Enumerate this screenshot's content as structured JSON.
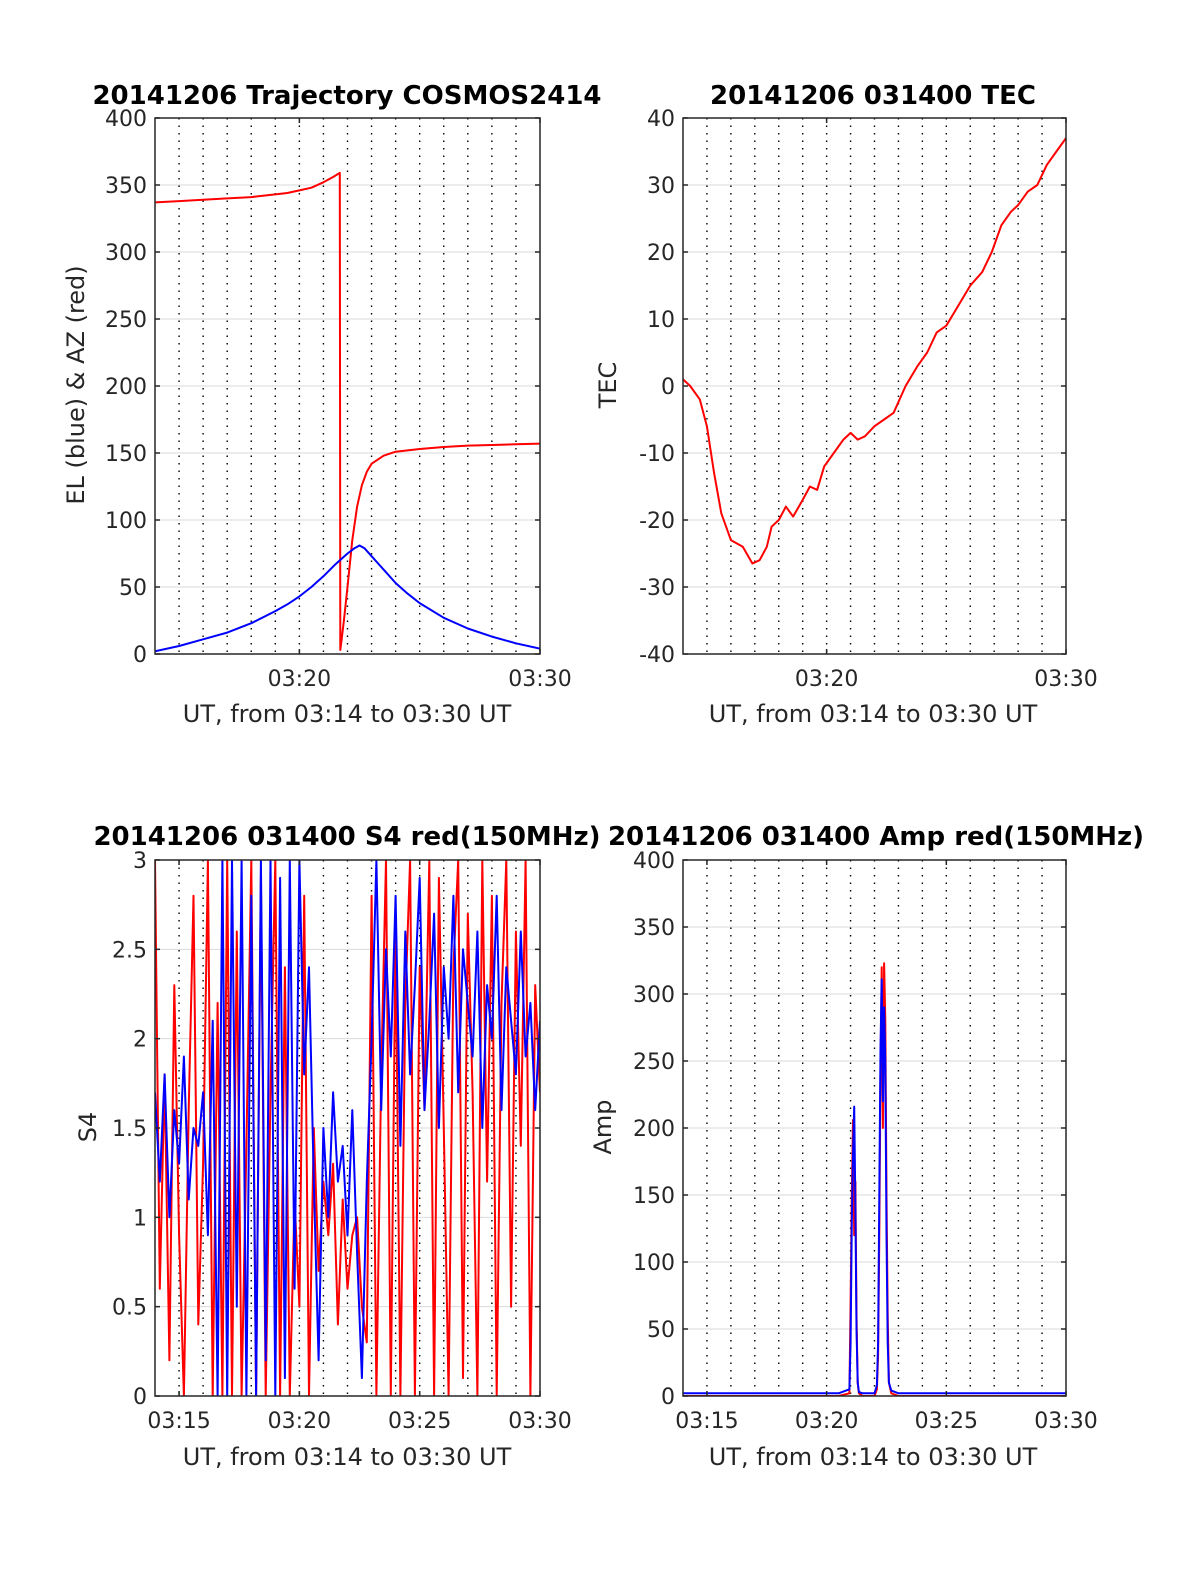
{
  "colors": {
    "red": "#ff0000",
    "blue": "#0000ff",
    "axis": "#262626",
    "grid": "#d9d9d9",
    "dot": "#000000"
  },
  "chart_data": [
    {
      "type": "line",
      "title": "20141206 Trajectory COSMOS2414",
      "xlabel": "UT, from 03:14 to 03:30 UT",
      "ylabel": "EL (blue) & AZ (red)",
      "xlim": [
        14,
        30
      ],
      "ylim": [
        0,
        400
      ],
      "xticks": [
        {
          "v": 20,
          "label": "03:20"
        },
        {
          "v": 30,
          "label": "03:30"
        }
      ],
      "yticks": [
        {
          "v": 0,
          "label": "0"
        },
        {
          "v": 50,
          "label": "50"
        },
        {
          "v": 100,
          "label": "100"
        },
        {
          "v": 150,
          "label": "150"
        },
        {
          "v": 200,
          "label": "200"
        },
        {
          "v": 250,
          "label": "250"
        },
        {
          "v": 300,
          "label": "300"
        },
        {
          "v": 350,
          "label": "350"
        },
        {
          "v": 400,
          "label": "400"
        }
      ],
      "grid": true,
      "series": [
        {
          "color": "red",
          "x": [
            14,
            15,
            16,
            17,
            18,
            19,
            19.5,
            20,
            20.5,
            21,
            21.4,
            21.68,
            21.7,
            21.75,
            21.85,
            22.0,
            22.2,
            22.4,
            22.6,
            22.8,
            23.0,
            23.5,
            24,
            25,
            26,
            27,
            28,
            29,
            30
          ],
          "y": [
            337,
            338,
            339,
            340,
            341,
            343,
            344,
            346,
            348,
            352,
            356,
            359,
            3,
            10,
            25,
            50,
            85,
            110,
            126,
            136,
            142,
            148,
            151,
            153,
            154.5,
            155.5,
            156,
            156.5,
            157
          ]
        },
        {
          "color": "blue",
          "x": [
            14,
            15,
            16,
            17,
            18,
            19,
            19.5,
            20,
            20.5,
            21,
            21.5,
            22,
            22.3,
            22.5,
            22.7,
            23,
            23.5,
            24,
            24.5,
            25,
            26,
            27,
            28,
            29,
            30
          ],
          "y": [
            2,
            6,
            11,
            16,
            23,
            32,
            37,
            43,
            50,
            58,
            67,
            75,
            79,
            81,
            79,
            73,
            63,
            53,
            45,
            38,
            27,
            19,
            13,
            8,
            4
          ]
        }
      ]
    },
    {
      "type": "line",
      "title": "20141206 031400 TEC",
      "xlabel": "UT, from 03:14 to 03:30 UT",
      "ylabel": "TEC",
      "xlim": [
        14,
        30
      ],
      "ylim": [
        -40,
        40
      ],
      "xticks": [
        {
          "v": 20,
          "label": "03:20"
        },
        {
          "v": 30,
          "label": "03:30"
        }
      ],
      "yticks": [
        {
          "v": -40,
          "label": "-40"
        },
        {
          "v": -30,
          "label": "-30"
        },
        {
          "v": -20,
          "label": "-20"
        },
        {
          "v": -10,
          "label": "-10"
        },
        {
          "v": 0,
          "label": "0"
        },
        {
          "v": 10,
          "label": "10"
        },
        {
          "v": 20,
          "label": "20"
        },
        {
          "v": 30,
          "label": "30"
        },
        {
          "v": 40,
          "label": "40"
        }
      ],
      "grid": true,
      "series": [
        {
          "color": "red",
          "x": [
            14,
            14.3,
            14.7,
            15.0,
            15.3,
            15.6,
            16.0,
            16.5,
            16.9,
            17.2,
            17.5,
            17.7,
            18.0,
            18.3,
            18.6,
            19.0,
            19.3,
            19.6,
            19.9,
            20.3,
            20.7,
            21.0,
            21.3,
            21.6,
            22.0,
            22.4,
            22.8,
            23.3,
            23.8,
            24.2,
            24.6,
            25.0,
            25.5,
            26.0,
            26.5,
            26.9,
            27.3,
            27.7,
            28.0,
            28.4,
            28.8,
            29.2,
            29.6,
            30
          ],
          "y": [
            1,
            0,
            -2,
            -6,
            -13,
            -19,
            -23,
            -24,
            -26.5,
            -26,
            -24,
            -21,
            -20,
            -18,
            -19.5,
            -17,
            -15,
            -15.5,
            -12,
            -10,
            -8,
            -7,
            -8,
            -7.5,
            -6,
            -5,
            -4,
            0,
            3,
            5,
            8,
            9,
            12,
            15,
            17,
            20,
            24,
            26,
            27,
            29,
            30,
            33,
            35,
            37
          ]
        }
      ]
    },
    {
      "type": "line",
      "title": "20141206 031400 S4 red(150MHz)",
      "xlabel": "UT, from 03:14 to 03:30 UT",
      "ylabel": "S4",
      "xlim": [
        14,
        30
      ],
      "ylim": [
        0,
        3
      ],
      "xticks": [
        {
          "v": 15,
          "label": "03:15"
        },
        {
          "v": 20,
          "label": "03:20"
        },
        {
          "v": 25,
          "label": "03:25"
        },
        {
          "v": 30,
          "label": "03:30"
        }
      ],
      "yticks": [
        {
          "v": 0,
          "label": "0"
        },
        {
          "v": 0.5,
          "label": "0.5"
        },
        {
          "v": 1,
          "label": "1"
        },
        {
          "v": 1.5,
          "label": "1.5"
        },
        {
          "v": 2,
          "label": "2"
        },
        {
          "v": 2.5,
          "label": "2.5"
        },
        {
          "v": 3,
          "label": "3"
        }
      ],
      "grid": true,
      "series": [
        {
          "color": "red",
          "x": [
            14.0,
            14.2,
            14.4,
            14.6,
            14.8,
            15.0,
            15.2,
            15.4,
            15.6,
            15.8,
            16.0,
            16.2,
            16.4,
            16.6,
            16.8,
            17.0,
            17.2,
            17.4,
            17.6,
            17.8,
            18.0,
            18.2,
            18.4,
            18.6,
            18.8,
            19.0,
            19.2,
            19.4,
            19.6,
            19.8,
            20.0,
            20.2,
            20.4,
            20.6,
            20.8,
            21.0,
            21.2,
            21.4,
            21.6,
            21.8,
            22.0,
            22.2,
            22.4,
            22.6,
            22.8,
            23.0,
            23.2,
            23.4,
            23.6,
            23.8,
            24.0,
            24.2,
            24.4,
            24.6,
            24.8,
            25.0,
            25.2,
            25.4,
            25.6,
            25.8,
            26.0,
            26.2,
            26.4,
            26.6,
            26.8,
            27.0,
            27.2,
            27.4,
            27.6,
            27.8,
            28.0,
            28.2,
            28.4,
            28.6,
            28.8,
            29.0,
            29.2,
            29.4,
            29.6,
            29.8,
            30.0
          ],
          "y": [
            3,
            0.6,
            1.8,
            0.2,
            2.3,
            0.9,
            0,
            1.6,
            2.8,
            0.4,
            1.3,
            3,
            0,
            2.2,
            0,
            3,
            0,
            2.6,
            0,
            1.4,
            3,
            0,
            2.9,
            0,
            1.7,
            3,
            0,
            2.4,
            0,
            1.1,
            0.5,
            2.8,
            0,
            1.5,
            0.7,
            1.2,
            0.9,
            1.3,
            0.4,
            1.1,
            0.6,
            0.9,
            1.0,
            0.5,
            0.3,
            2.8,
            0,
            1.8,
            3,
            0,
            2.6,
            0,
            2.2,
            3,
            0,
            2.4,
            1.6,
            3,
            0,
            2.9,
            1.5,
            0,
            2.4,
            3,
            0.1,
            2.7,
            1.7,
            0,
            3,
            1.2,
            2.8,
            0,
            2.2,
            3,
            0.5,
            2.6,
            1.4,
            3,
            0,
            2.3,
            1.7
          ]
        },
        {
          "color": "blue",
          "x": [
            14.0,
            14.2,
            14.4,
            14.6,
            14.8,
            15.0,
            15.2,
            15.4,
            15.6,
            15.8,
            16.0,
            16.2,
            16.4,
            16.6,
            16.8,
            17.0,
            17.2,
            17.4,
            17.6,
            17.8,
            18.0,
            18.2,
            18.4,
            18.6,
            18.8,
            19.0,
            19.2,
            19.4,
            19.6,
            19.8,
            20.0,
            20.2,
            20.4,
            20.6,
            20.8,
            21.0,
            21.2,
            21.4,
            21.6,
            21.8,
            22.0,
            22.2,
            22.4,
            22.6,
            22.8,
            23.0,
            23.2,
            23.4,
            23.6,
            23.8,
            24.0,
            24.2,
            24.4,
            24.6,
            24.8,
            25.0,
            25.2,
            25.4,
            25.6,
            25.8,
            26.0,
            26.2,
            26.4,
            26.6,
            26.8,
            27.0,
            27.2,
            27.4,
            27.6,
            27.8,
            28.0,
            28.2,
            28.4,
            28.6,
            28.8,
            29.0,
            29.2,
            29.4,
            29.6,
            29.8,
            30.0
          ],
          "y": [
            1.7,
            1.2,
            1.8,
            1.0,
            1.6,
            1.3,
            1.9,
            1.1,
            1.5,
            1.4,
            1.7,
            0.9,
            2.1,
            0,
            3,
            0,
            3,
            0.5,
            3,
            0,
            2.8,
            0,
            3,
            0.2,
            3,
            0,
            2.9,
            0.1,
            3,
            0.6,
            3,
            1.8,
            2.4,
            1.2,
            0.2,
            1.5,
            1.0,
            1.7,
            1.2,
            1.4,
            0.9,
            1.6,
            0.8,
            0.1,
            1.2,
            2.0,
            3,
            1.6,
            2.5,
            1.9,
            2.8,
            1.4,
            2.6,
            1.8,
            2.3,
            2.9,
            1.6,
            2.1,
            2.7,
            1.5,
            2.4,
            2.0,
            2.8,
            1.7,
            2.5,
            2.2,
            1.9,
            2.6,
            1.5,
            2.3,
            2.0,
            2.8,
            1.6,
            2.4,
            2.1,
            1.8,
            2.6,
            1.9,
            2.2,
            1.6,
            2.1
          ]
        }
      ]
    },
    {
      "type": "line",
      "title": "20141206 031400 Amp red(150MHz)",
      "xlabel": "UT, from 03:14 to 03:30 UT",
      "ylabel": "Amp",
      "xlim": [
        14,
        30
      ],
      "ylim": [
        0,
        400
      ],
      "xticks": [
        {
          "v": 15,
          "label": "03:15"
        },
        {
          "v": 20,
          "label": "03:20"
        },
        {
          "v": 25,
          "label": "03:25"
        },
        {
          "v": 30,
          "label": "03:30"
        }
      ],
      "yticks": [
        {
          "v": 0,
          "label": "0"
        },
        {
          "v": 50,
          "label": "50"
        },
        {
          "v": 100,
          "label": "100"
        },
        {
          "v": 150,
          "label": "150"
        },
        {
          "v": 200,
          "label": "200"
        },
        {
          "v": 250,
          "label": "250"
        },
        {
          "v": 300,
          "label": "300"
        },
        {
          "v": 350,
          "label": "350"
        },
        {
          "v": 400,
          "label": "400"
        }
      ],
      "grid": true,
      "series": [
        {
          "color": "red",
          "x": [
            14,
            20.5,
            20.95,
            21.0,
            21.05,
            21.1,
            21.15,
            21.2,
            21.25,
            21.3,
            21.35,
            21.5,
            22.0,
            22.1,
            22.15,
            22.2,
            22.25,
            22.3,
            22.35,
            22.4,
            22.45,
            22.5,
            22.55,
            22.6,
            22.7,
            23,
            30
          ],
          "y": [
            0,
            0,
            2,
            70,
            150,
            206,
            120,
            160,
            60,
            10,
            2,
            0,
            0,
            5,
            30,
            120,
            240,
            320,
            200,
            323,
            280,
            150,
            60,
            10,
            2,
            0,
            0
          ]
        },
        {
          "color": "blue",
          "x": [
            14,
            20.5,
            20.95,
            21.0,
            21.05,
            21.1,
            21.15,
            21.2,
            21.25,
            21.3,
            21.35,
            21.5,
            22.0,
            22.1,
            22.15,
            22.2,
            22.25,
            22.3,
            22.35,
            22.4,
            22.45,
            22.5,
            22.55,
            22.6,
            22.7,
            23,
            30
          ],
          "y": [
            2,
            2,
            5,
            40,
            130,
            180,
            216,
            140,
            50,
            10,
            3,
            2,
            2,
            8,
            40,
            150,
            260,
            311,
            220,
            290,
            250,
            120,
            40,
            10,
            4,
            2,
            2
          ]
        }
      ]
    }
  ]
}
